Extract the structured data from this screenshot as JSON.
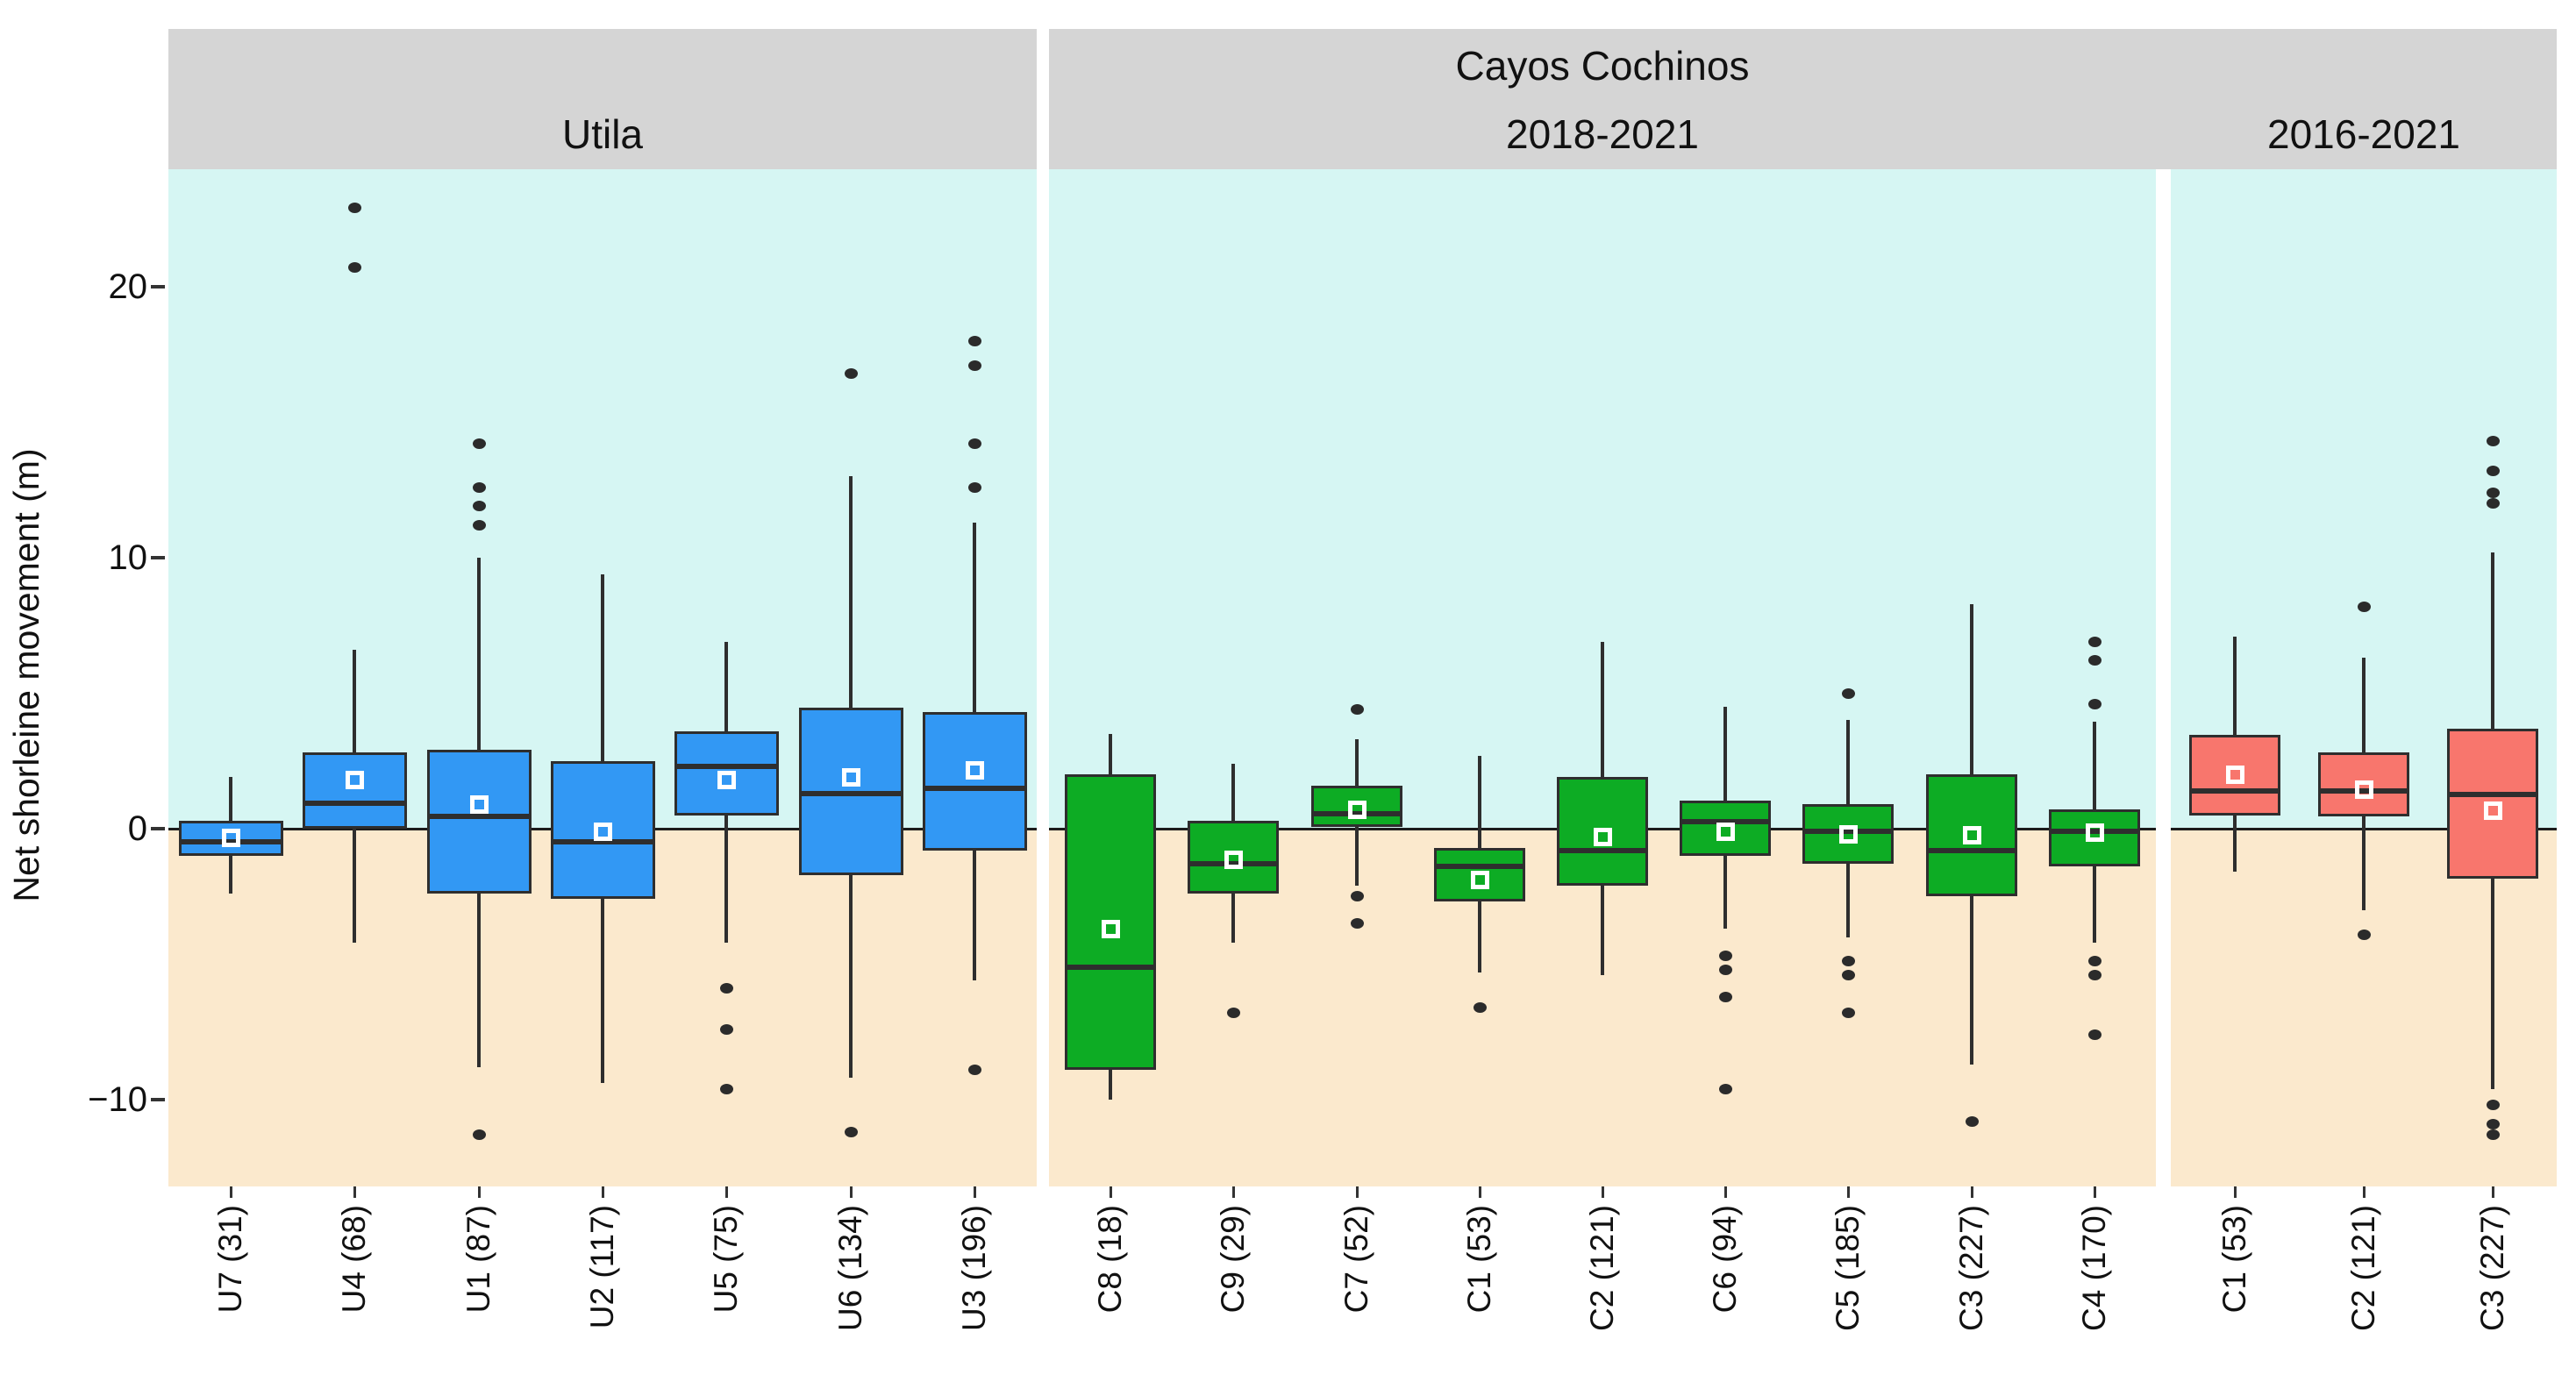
{
  "y_axis": {
    "title": "Net shorleine movement (m)",
    "ticks": [
      {
        "label": "20",
        "value": 20
      },
      {
        "label": "10",
        "value": 10
      },
      {
        "label": "0",
        "value": 0
      },
      {
        "label": "−10",
        "value": -10
      }
    ]
  },
  "facets": {
    "utila_label": "Utila",
    "cayos_outer_label": "Cayos Cochinos",
    "inner_2018_label": "2018-2021",
    "inner_2016_label": "2016-2021"
  },
  "colors": {
    "strip_background": "#D5D5D5",
    "background_above_zero": "#D6F6F3",
    "background_below_zero": "#FBE9CD",
    "utila_fill": "#3298F4",
    "cayos_2018_fill": "#0DAC24",
    "cayos_2016_fill": "#F8766D",
    "line_dark": "#2E2E2E"
  },
  "chart_data": {
    "type": "boxplot",
    "ylabel": "Net shorleine movement (m)",
    "ylim": [
      -13.0,
      24.4
    ],
    "zero_reference_line": 0,
    "y_tick_values": [
      20,
      10,
      0,
      -10
    ],
    "grid": "off",
    "legend": "none",
    "panels": [
      {
        "id": "utila",
        "strip": "Utila",
        "fill": "#3298F4",
        "boxes": [
          {
            "label": "U7 (31)",
            "low": -2.4,
            "q1": -1.0,
            "median": -0.5,
            "q3": 0.3,
            "high": 1.9,
            "mean": -0.35,
            "outliers": []
          },
          {
            "label": "U4 (68)",
            "low": -4.2,
            "q1": 0.0,
            "median": 0.95,
            "q3": 2.8,
            "high": 6.6,
            "mean": 1.8,
            "outliers": [
              22.9,
              20.7
            ]
          },
          {
            "label": "U1 (87)",
            "low": -8.8,
            "q1": -2.4,
            "median": 0.45,
            "q3": 2.9,
            "high": 10.0,
            "mean": 0.9,
            "outliers": [
              14.2,
              12.6,
              11.9,
              11.2,
              -11.3
            ]
          },
          {
            "label": "U2 (117)",
            "low": -9.4,
            "q1": -2.6,
            "median": -0.5,
            "q3": 2.5,
            "high": 9.4,
            "mean": -0.1,
            "outliers": []
          },
          {
            "label": "U5 (75)",
            "low": -4.2,
            "q1": 0.5,
            "median": 2.3,
            "q3": 3.6,
            "high": 6.9,
            "mean": 1.8,
            "outliers": [
              -5.9,
              -7.4,
              -9.6
            ]
          },
          {
            "label": "U6 (134)",
            "low": -9.2,
            "q1": -1.7,
            "median": 1.3,
            "q3": 4.45,
            "high": 13.0,
            "mean": 1.9,
            "outliers": [
              16.8,
              -11.2
            ]
          },
          {
            "label": "U3 (196)",
            "low": -5.6,
            "q1": -0.8,
            "median": 1.5,
            "q3": 4.3,
            "high": 11.3,
            "mean": 2.15,
            "outliers": [
              18.0,
              17.1,
              14.2,
              12.6,
              -8.9
            ]
          }
        ]
      },
      {
        "id": "cayos-2018-2021",
        "strip": "2018-2021",
        "fill": "#0DAC24",
        "boxes": [
          {
            "label": "C8 (18)",
            "low": -10.0,
            "q1": -8.9,
            "median": -5.1,
            "q3": 2.0,
            "high": 3.5,
            "mean": -3.7,
            "outliers": []
          },
          {
            "label": "C9 (29)",
            "low": -4.2,
            "q1": -2.4,
            "median": -1.3,
            "q3": 0.3,
            "high": 2.4,
            "mean": -1.15,
            "outliers": [
              -6.8
            ]
          },
          {
            "label": "C7 (52)",
            "low": -2.1,
            "q1": 0.05,
            "median": 0.55,
            "q3": 1.6,
            "high": 3.3,
            "mean": 0.7,
            "outliers": [
              4.4,
              -2.5,
              -3.5
            ]
          },
          {
            "label": "C1 (53)",
            "low": -5.3,
            "q1": -2.7,
            "median": -1.4,
            "q3": -0.7,
            "high": 2.7,
            "mean": -1.9,
            "outliers": [
              -6.6
            ]
          },
          {
            "label": "C2 (121)",
            "low": -5.4,
            "q1": -2.1,
            "median": -0.8,
            "q3": 1.9,
            "high": 6.9,
            "mean": -0.3,
            "outliers": []
          },
          {
            "label": "C6 (94)",
            "low": -3.7,
            "q1": -1.0,
            "median": 0.25,
            "q3": 1.05,
            "high": 4.5,
            "mean": -0.1,
            "outliers": [
              -4.7,
              -5.2,
              -6.2,
              -9.6
            ]
          },
          {
            "label": "C5 (185)",
            "low": -4.0,
            "q1": -1.3,
            "median": -0.1,
            "q3": 0.9,
            "high": 4.0,
            "mean": -0.2,
            "outliers": [
              5.0,
              -4.9,
              -5.4,
              -6.8
            ]
          },
          {
            "label": "C3 (227)",
            "low": -8.7,
            "q1": -2.5,
            "median": -0.8,
            "q3": 2.0,
            "high": 8.3,
            "mean": -0.25,
            "outliers": [
              -10.8
            ]
          },
          {
            "label": "C4 (170)",
            "low": -4.2,
            "q1": -1.4,
            "median": -0.1,
            "q3": 0.7,
            "high": 3.95,
            "mean": -0.15,
            "outliers": [
              6.9,
              6.2,
              4.6,
              -4.9,
              -5.4,
              -7.6
            ]
          }
        ]
      },
      {
        "id": "cayos-2016-2021",
        "strip": "2016-2021",
        "fill": "#F8766D",
        "boxes": [
          {
            "label": "C1 (53)",
            "low": -1.6,
            "q1": 0.5,
            "median": 1.4,
            "q3": 3.45,
            "high": 7.1,
            "mean": 2.0,
            "outliers": []
          },
          {
            "label": "C2 (121)",
            "low": -3.0,
            "q1": 0.45,
            "median": 1.4,
            "q3": 2.8,
            "high": 6.3,
            "mean": 1.45,
            "outliers": [
              8.2,
              -3.9
            ]
          },
          {
            "label": "C3 (227)",
            "low": -9.6,
            "q1": -1.85,
            "median": 1.25,
            "q3": 3.7,
            "high": 10.2,
            "mean": 0.65,
            "outliers": [
              14.3,
              13.2,
              12.4,
              12.0,
              -10.2,
              -10.9,
              -11.3
            ]
          }
        ]
      }
    ]
  }
}
